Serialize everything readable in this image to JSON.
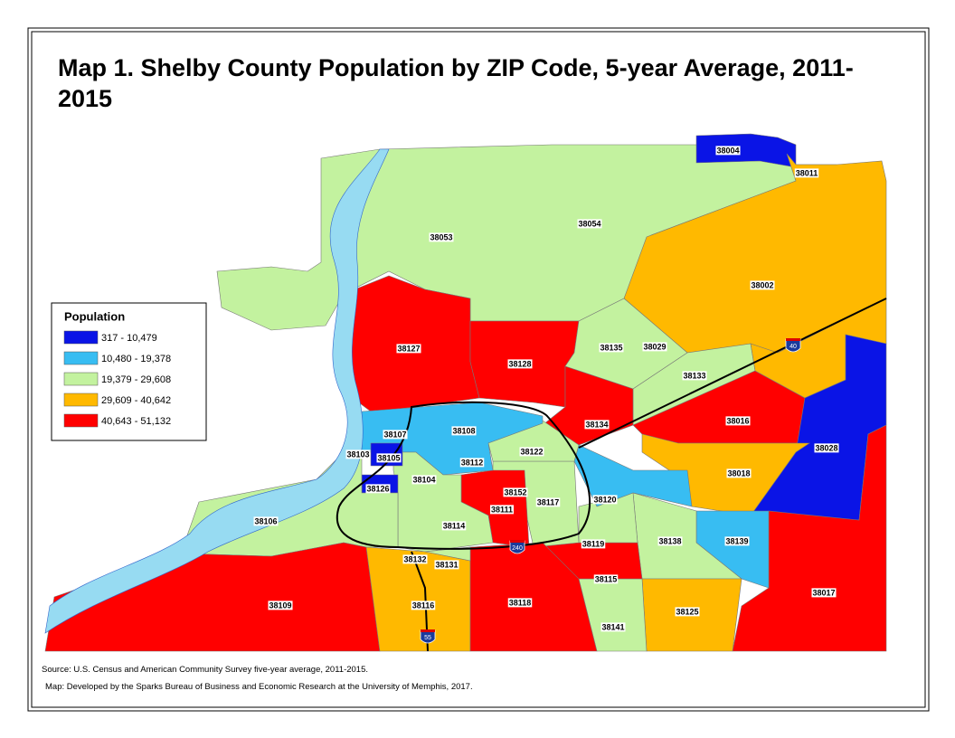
{
  "title": "Map 1. Shelby County Population by ZIP Code, 5-year Average, 2011-2015",
  "legend": {
    "title": "Population",
    "items": [
      {
        "label": "317 - 10,479",
        "color": "#0a14e6"
      },
      {
        "label": "10,480 - 19,378",
        "color": "#38bdf2"
      },
      {
        "label": "19,379 - 29,608",
        "color": "#c3f29f"
      },
      {
        "label": "29,609 - 40,642",
        "color": "#ffb900"
      },
      {
        "label": "40,643 - 51,132",
        "color": "#ff0000"
      }
    ]
  },
  "zip_labels": [
    "38004",
    "38011",
    "38054",
    "38053",
    "38002",
    "38127",
    "38128",
    "38135",
    "38029",
    "38133",
    "38134",
    "38016",
    "38028",
    "38107",
    "38108",
    "38103",
    "38105",
    "38122",
    "38112",
    "38104",
    "38018",
    "38126",
    "38152",
    "38117",
    "38120",
    "38111",
    "38106",
    "38114",
    "38119",
    "38138",
    "38139",
    "38132",
    "38131",
    "38115",
    "38017",
    "38109",
    "38116",
    "38118",
    "38125",
    "38141"
  ],
  "highways": [
    "40",
    "240",
    "55"
  ],
  "source": "Source:  U.S. Census and American Community Survey five-year average, 2011-2015.",
  "credit": "Map:  Developed by the Sparks Bureau of Business and Economic Research at the University of Memphis, 2017."
}
